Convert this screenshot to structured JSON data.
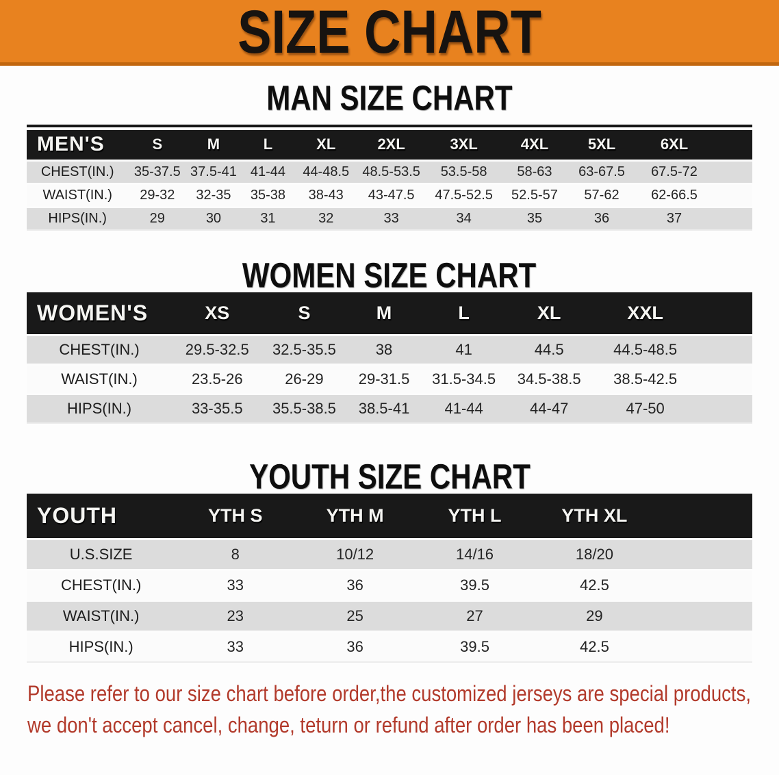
{
  "banner": {
    "title": "SIZE CHART"
  },
  "sections": [
    {
      "heading": "MAN SIZE CHART",
      "table": {
        "label": "MEN'S",
        "columns": [
          "S",
          "M",
          "L",
          "XL",
          "2XL",
          "3XL",
          "4XL",
          "5XL",
          "6XL"
        ],
        "rows": [
          {
            "label": "CHEST(IN.)",
            "values": [
              "35-37.5",
              "37.5-41",
              "41-44",
              "44-48.5",
              "48.5-53.5",
              "53.5-58",
              "58-63",
              "63-67.5",
              "67.5-72"
            ]
          },
          {
            "label": "WAIST(IN.)",
            "values": [
              "29-32",
              "32-35",
              "35-38",
              "38-43",
              "43-47.5",
              "47.5-52.5",
              "52.5-57",
              "57-62",
              "62-66.5"
            ]
          },
          {
            "label": "HIPS(IN.)",
            "values": [
              "29",
              "30",
              "31",
              "32",
              "33",
              "34",
              "35",
              "36",
              "37"
            ]
          }
        ]
      }
    },
    {
      "heading": "WOMEN SIZE CHART",
      "table": {
        "label": "WOMEN'S",
        "columns": [
          "XS",
          "S",
          "M",
          "L",
          "XL",
          "XXL"
        ],
        "rows": [
          {
            "label": "CHEST(IN.)",
            "values": [
              "29.5-32.5",
              "32.5-35.5",
              "38",
              "41",
              "44.5",
              "44.5-48.5"
            ]
          },
          {
            "label": "WAIST(IN.)",
            "values": [
              "23.5-26",
              "26-29",
              "29-31.5",
              "31.5-34.5",
              "34.5-38.5",
              "38.5-42.5"
            ]
          },
          {
            "label": "HIPS(IN.)",
            "values": [
              "33-35.5",
              "35.5-38.5",
              "38.5-41",
              "41-44",
              "44-47",
              "47-50"
            ]
          }
        ]
      }
    },
    {
      "heading": "YOUTH SIZE CHART",
      "table": {
        "label": "YOUTH",
        "columns": [
          "YTH S",
          "YTH M",
          "YTH L",
          "YTH XL"
        ],
        "rows": [
          {
            "label": "U.S.SIZE",
            "values": [
              "8",
              "10/12",
              "14/16",
              "18/20"
            ]
          },
          {
            "label": "CHEST(IN.)",
            "values": [
              "33",
              "36",
              "39.5",
              "42.5"
            ]
          },
          {
            "label": "WAIST(IN.)",
            "values": [
              "23",
              "25",
              "27",
              "29"
            ]
          },
          {
            "label": "HIPS(IN.)",
            "values": [
              "33",
              "36",
              "39.5",
              "42.5"
            ]
          }
        ]
      }
    }
  ],
  "footer": {
    "lines": [
      "Please refer to our size chart before order,the customized jerseys are special products,",
      "we don't accept cancel, change, teturn or refund after order has been placed!"
    ]
  },
  "colors": {
    "banner_bg": "#e8821f",
    "banner_border": "#c1660e",
    "header_bar": "#191919",
    "row_stripe_gray": "#dcdcdc",
    "footer_red": "#b23a2b"
  }
}
